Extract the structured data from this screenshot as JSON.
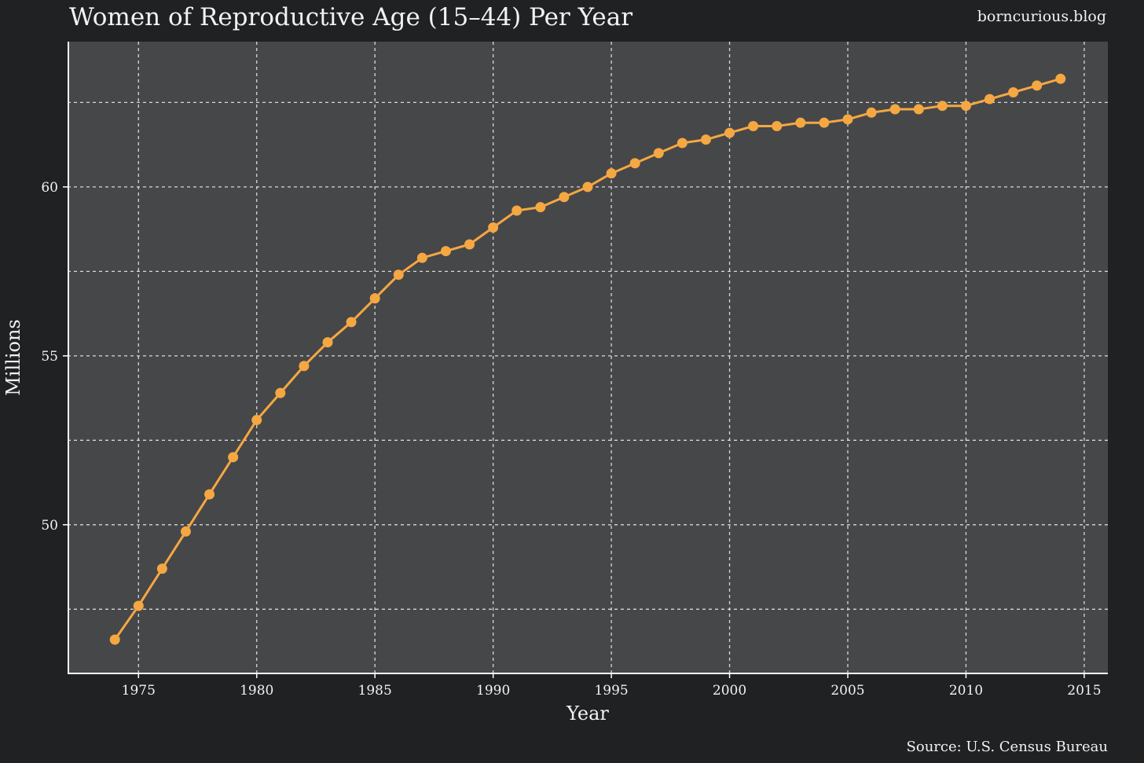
{
  "header": {
    "title": "Women of Reproductive Age (15–44) Per Year",
    "brand": "borncurious.blog"
  },
  "footer": {
    "source": "Source: U.S. Census Bureau"
  },
  "colors": {
    "background": "#202123",
    "plot_background": "#464749",
    "grid": "#d8d8d8",
    "series": "#f5a742",
    "axis": "#ffffff"
  },
  "chart_data": {
    "type": "line",
    "title": "Women of Reproductive Age (15–44) Per Year",
    "xlabel": "Year",
    "ylabel": "Millions",
    "xlim": [
      1972,
      2016
    ],
    "ylim": [
      45.6,
      64.3
    ],
    "grid": true,
    "grid_style": "dashed",
    "xticks": [
      1975,
      1980,
      1985,
      1990,
      1995,
      2000,
      2005,
      2010,
      2015
    ],
    "xtick_labels": [
      "1975",
      "1980",
      "1985",
      "1990",
      "1995",
      "2000",
      "2005",
      "2010",
      "2015"
    ],
    "yticks": [
      50,
      55,
      60
    ],
    "ytick_labels": [
      "50",
      "55",
      "60"
    ],
    "ygrid_minor": [
      47.5,
      52.5,
      57.5,
      62.5
    ],
    "series": [
      {
        "color": "#f5a742",
        "marker": "circle",
        "x": [
          1974,
          1975,
          1976,
          1977,
          1978,
          1979,
          1980,
          1981,
          1982,
          1983,
          1984,
          1985,
          1986,
          1987,
          1988,
          1989,
          1990,
          1991,
          1992,
          1993,
          1994,
          1995,
          1996,
          1997,
          1998,
          1999,
          2000,
          2001,
          2002,
          2003,
          2004,
          2005,
          2006,
          2007,
          2008,
          2009,
          2010,
          2011,
          2012,
          2013,
          2014
        ],
        "values": [
          46.6,
          47.6,
          48.7,
          49.8,
          50.9,
          52.0,
          53.1,
          53.9,
          54.7,
          55.4,
          56.0,
          56.7,
          57.4,
          57.9,
          58.1,
          58.3,
          58.8,
          59.3,
          59.4,
          59.7,
          60.0,
          60.4,
          60.7,
          61.0,
          61.3,
          61.4,
          61.6,
          61.8,
          61.8,
          61.9,
          61.9,
          62.0,
          62.2,
          62.3,
          62.3,
          62.4,
          62.4,
          62.6,
          62.8,
          63.0,
          63.2
        ]
      }
    ]
  }
}
